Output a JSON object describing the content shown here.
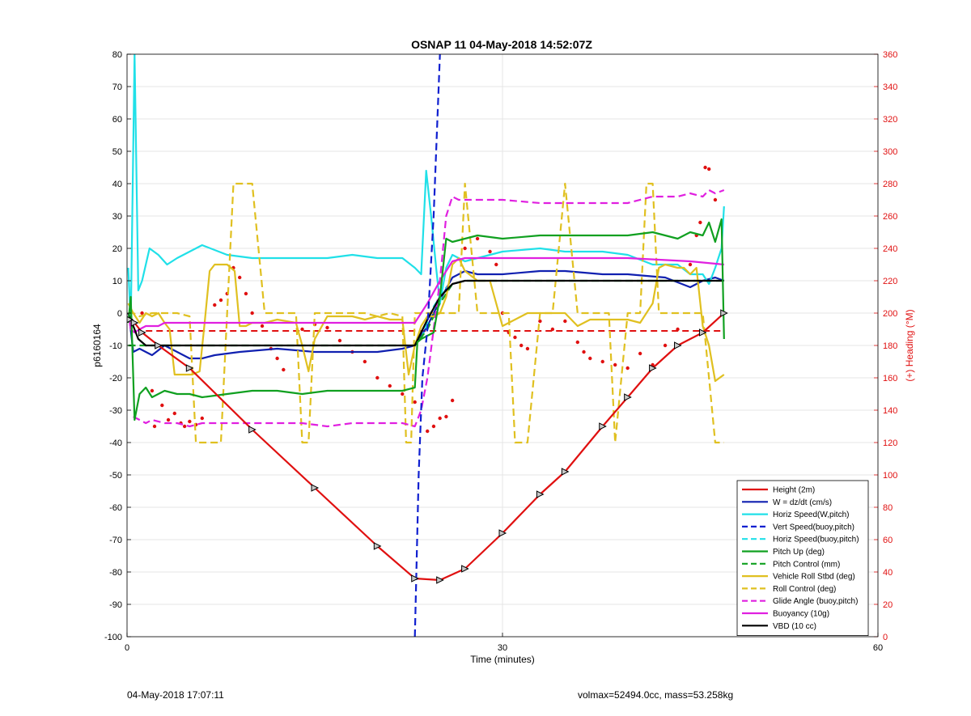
{
  "chart_data": {
    "type": "line",
    "title": "OSNAP 11 04-May-2018 14:52:07Z",
    "xlabel": "Time (minutes)",
    "ylabel_left": "p6160164",
    "ylabel_right": "(+) Heading (°M)",
    "xlim": [
      0,
      60
    ],
    "ylim_left": [
      -100,
      80
    ],
    "ylim_right": [
      0,
      360
    ],
    "x_ticks": [
      "0",
      "30",
      "60"
    ],
    "y_ticks_left": [
      "80",
      "70",
      "60",
      "50",
      "40",
      "30",
      "20",
      "10",
      "0",
      "-10",
      "-20",
      "-30",
      "-40",
      "-50",
      "-60",
      "-70",
      "-80",
      "-90",
      "-100"
    ],
    "y_ticks_right": [
      "360",
      "340",
      "320",
      "300",
      "280",
      "260",
      "240",
      "220",
      "200",
      "180",
      "160",
      "140",
      "120",
      "100",
      "80",
      "60",
      "40",
      "20",
      "0"
    ],
    "grid": true,
    "legend_position": "bottom-right",
    "series": [
      {
        "name": "Height (2m)",
        "color": "#e01010",
        "style": "solid",
        "x": [
          0.2,
          0.6,
          1.2,
          2.5,
          5,
          10,
          15,
          20,
          23,
          25,
          27,
          30,
          33,
          35,
          38,
          40,
          42,
          44,
          46,
          47.7
        ],
        "y": [
          -2,
          -3,
          -6,
          -10,
          -17,
          -36,
          -54,
          -72,
          -82,
          -82.5,
          -79,
          -68,
          -56,
          -49,
          -35,
          -26,
          -17,
          -10,
          -6,
          0
        ]
      },
      {
        "name": "W = dz/dt (cm/s)",
        "color": "#1020b0",
        "style": "solid",
        "x": [
          0.2,
          0.5,
          1,
          2,
          3,
          4,
          5,
          6,
          7,
          9,
          12,
          15,
          18,
          20,
          22,
          23,
          24,
          25,
          26,
          27,
          28,
          30,
          33,
          35,
          38,
          40,
          43,
          45,
          46,
          47,
          47.7
        ],
        "y": [
          -2,
          -12,
          -11,
          -13,
          -10,
          -12,
          -14,
          -14,
          -13,
          -12,
          -11,
          -12,
          -12,
          -12,
          -11,
          -10,
          -4,
          4,
          11,
          13,
          12,
          12,
          13,
          13,
          12,
          12,
          11,
          8,
          10,
          11,
          10
        ]
      },
      {
        "name": "Horiz Speed(W,pitch)",
        "color": "#20e0e8",
        "style": "solid",
        "x": [
          0.1,
          0.3,
          0.6,
          0.9,
          1.2,
          1.8,
          2.5,
          3.2,
          4,
          6,
          8,
          10,
          12,
          14,
          16,
          18,
          20,
          22,
          23,
          23.5,
          23.9,
          24.3,
          24.7,
          25,
          25.5,
          26,
          27,
          28,
          30,
          33,
          35,
          38,
          40,
          42,
          44,
          45,
          46,
          46.5,
          47,
          47.5,
          47.7
        ],
        "y": [
          14,
          -3,
          80,
          7,
          10,
          20,
          18,
          15,
          17,
          21,
          18,
          17,
          17,
          17,
          17,
          18,
          17,
          17,
          14,
          12,
          44,
          30,
          14,
          3,
          14,
          18,
          16,
          17,
          19,
          20,
          19,
          19,
          18,
          15,
          15,
          12,
          12,
          9,
          14,
          20,
          33
        ]
      },
      {
        "name": "Vert Speed(buoy,pitch)",
        "color": "#1020d0",
        "style": "dashed",
        "x": [
          23.0,
          23.3,
          23.6,
          24.0,
          24.5,
          25.0
        ],
        "y": [
          -100,
          -50,
          -20,
          -5,
          30,
          80
        ]
      },
      {
        "name": "Horiz Speed(buoy,pitch)",
        "color": "#20e0e8",
        "style": "dashed",
        "x": [
          23.5,
          24,
          24.5,
          25,
          25.5
        ],
        "y": [
          -8,
          -3,
          2,
          5,
          8
        ]
      },
      {
        "name": "Pitch Up (deg)",
        "color": "#10a020",
        "style": "solid",
        "x": [
          0.1,
          0.3,
          0.6,
          1,
          1.5,
          2,
          3,
          4,
          5,
          6,
          8,
          10,
          12,
          14,
          16,
          18,
          20,
          22,
          23,
          23.2,
          23.5,
          24,
          24.5,
          25,
          25.5,
          26,
          28,
          30,
          33,
          35,
          38,
          40,
          42,
          44,
          45,
          46,
          46.5,
          47,
          47.5,
          47.7
        ],
        "y": [
          -3,
          5,
          -33,
          -25,
          -23,
          -26,
          -24,
          -25,
          -25,
          -26,
          -25,
          -24,
          -24,
          -25,
          -24,
          -24,
          -24,
          -24,
          -23,
          -9,
          -8,
          -7,
          -6,
          5,
          23,
          22,
          24,
          23,
          24,
          24,
          24,
          24,
          25,
          23,
          25,
          24,
          28,
          22,
          29,
          -8
        ]
      },
      {
        "name": "Pitch Control (mm)",
        "color": "#10a020",
        "style": "dashed",
        "x": [
          0.1,
          1,
          3,
          5,
          10,
          15,
          20,
          23,
          24,
          25,
          26,
          27,
          30,
          35,
          40,
          45,
          47.7
        ],
        "y": [
          -10,
          -10,
          -10,
          -10,
          -10,
          -10,
          -10,
          -10,
          -5,
          3,
          9,
          10,
          10,
          10,
          10,
          10,
          10
        ]
      },
      {
        "name": "Vehicle Roll Stbd (deg)",
        "color": "#e0c020",
        "style": "solid",
        "x": [
          0.1,
          0.5,
          1,
          1.5,
          2,
          2.5,
          3,
          3.4,
          3.8,
          4.3,
          5.2,
          5.8,
          6.2,
          6.6,
          7,
          8,
          8.6,
          9,
          9.5,
          10,
          10.5,
          11,
          12,
          13.5,
          14,
          14.5,
          15,
          16,
          17,
          18,
          19,
          20,
          21,
          22,
          22.5,
          23,
          23.5,
          24,
          24.5,
          25,
          25.5,
          26,
          26.5,
          27,
          28,
          29,
          30,
          31,
          31.5,
          32,
          33,
          34,
          35,
          36,
          37,
          38,
          39,
          40,
          41,
          42,
          42.5,
          43,
          44,
          44.5,
          45,
          45.5,
          46,
          46.5,
          47,
          47.7
        ],
        "y": [
          3,
          0,
          -3,
          0,
          -1,
          0,
          -3,
          -5,
          -19,
          -19,
          -19,
          -18,
          -3,
          13,
          15,
          15,
          13,
          -4,
          -4,
          -3,
          -3,
          -3,
          -2,
          -3,
          -10,
          -18,
          -8,
          -1,
          -1,
          -1,
          -2,
          -1,
          -2,
          -2,
          -19,
          -10,
          -4,
          -1,
          -1,
          0,
          5,
          15,
          17,
          13,
          10,
          10,
          -4,
          -2,
          -1,
          0,
          0,
          0,
          0,
          -4,
          -2,
          -2,
          -2,
          -2,
          -3,
          3,
          14,
          15,
          14,
          14,
          12,
          14,
          -4,
          -10,
          -21,
          -19
        ]
      },
      {
        "name": "Roll Control (deg)",
        "color": "#e0c020",
        "style": "dashed",
        "x": [
          0.1,
          0.5,
          1,
          2,
          3,
          4,
          5,
          5.5,
          6,
          7,
          7.5,
          8,
          8.5,
          9.5,
          10,
          11,
          12,
          13,
          13.5,
          14,
          14.5,
          15,
          16,
          17,
          18,
          19,
          20,
          21,
          22,
          22.3,
          22.7,
          23,
          23.5,
          24,
          25,
          26,
          26.5,
          27,
          28,
          29,
          30,
          30.5,
          31,
          31.5,
          32,
          33,
          34,
          35,
          36,
          37,
          38,
          38.5,
          39,
          40,
          41,
          41.5,
          42,
          42.5,
          43,
          44,
          45,
          46,
          47,
          47.7
        ],
        "y": [
          0,
          0,
          -1,
          0,
          0,
          0,
          -1,
          -40,
          -40,
          -40,
          -40,
          0,
          40,
          40,
          40,
          0,
          0,
          0,
          0,
          -40,
          -40,
          0,
          0,
          0,
          0,
          0,
          -1,
          0,
          -1,
          -40,
          -40,
          0,
          0,
          0,
          0,
          0,
          0,
          40,
          0,
          0,
          0,
          0,
          -40,
          -40,
          -40,
          0,
          0,
          40,
          0,
          0,
          0,
          0,
          -40,
          0,
          0,
          40,
          40,
          0,
          0,
          0,
          0,
          0,
          -40,
          -40
        ]
      },
      {
        "name": "Glide Angle (buoy,pitch)",
        "color": "#e020e0",
        "style": "dashed",
        "x": [
          0.5,
          1,
          1.5,
          2,
          3,
          4,
          5,
          6,
          8,
          10,
          12,
          14,
          16,
          18,
          20,
          22,
          23,
          23.5,
          24,
          24.5,
          25,
          25.5,
          26,
          26.5,
          27,
          28,
          30,
          33,
          35,
          38,
          40,
          42,
          44,
          45,
          46,
          46.5,
          47,
          47.7
        ],
        "y": [
          -32,
          -33,
          -34,
          -33,
          -34,
          -34,
          -35,
          -34,
          -34,
          -34,
          -34,
          -34,
          -35,
          -34,
          -34,
          -34,
          -35,
          -30,
          -20,
          -5,
          10,
          30,
          36,
          35,
          35,
          35,
          35,
          34,
          34,
          34,
          34,
          36,
          36,
          37,
          36,
          38,
          37,
          38
        ]
      },
      {
        "name": "Buoyancy (10g)",
        "color": "#e020e0",
        "style": "solid",
        "x": [
          0.1,
          0.3,
          0.6,
          1,
          1.5,
          2,
          2.5,
          3,
          4,
          5,
          10,
          15,
          20,
          23,
          24,
          25,
          26,
          27,
          28,
          30,
          35,
          40,
          45,
          47.7
        ],
        "y": [
          0,
          -5,
          -6,
          -5,
          -4,
          -4,
          -4,
          -3,
          -3,
          -3,
          -3,
          -3,
          -3,
          -3,
          3,
          10,
          16,
          17,
          17,
          17,
          17,
          17,
          16,
          15
        ]
      },
      {
        "name": "VBD (10 cc)",
        "color": "#000000",
        "style": "solid",
        "x": [
          0.1,
          0.3,
          0.5,
          0.9,
          1.5,
          2,
          3,
          5,
          10,
          15,
          20,
          23,
          24,
          25,
          26,
          27,
          28,
          30,
          35,
          40,
          45,
          47.7
        ],
        "y": [
          0,
          -2,
          -4,
          -8,
          -10,
          -10,
          -10,
          -10,
          -10,
          -10,
          -10,
          -10,
          -2,
          5,
          9,
          10,
          10,
          10,
          10,
          10,
          10,
          10
        ]
      }
    ],
    "reference_line": {
      "color": "#e01010",
      "style": "dashed",
      "y": -5.5,
      "xmin": 1.5,
      "xmax": 47.7
    },
    "heading_points": {
      "color": "#e01010",
      "axis": "right",
      "x": [
        1.2,
        2.0,
        2.2,
        2.8,
        3.3,
        3.8,
        4.3,
        4.6,
        5.0,
        5.5,
        6.0,
        7.0,
        7.5,
        8.0,
        8.5,
        9.0,
        9.5,
        10.0,
        10.8,
        11.5,
        12.0,
        12.5,
        14.0,
        15.0,
        16.0,
        17.0,
        18.0,
        19.0,
        20.0,
        21.0,
        22.0,
        23.0,
        24.0,
        24.5,
        25.0,
        25.5,
        26.0,
        27.0,
        28.0,
        29.0,
        29.5,
        30.0,
        30.5,
        31.0,
        31.5,
        32.0,
        33.0,
        34.0,
        35.0,
        36.0,
        36.5,
        37.0,
        38.0,
        39.0,
        40.0,
        41.0,
        42.0,
        43.0,
        44.0,
        45.0,
        45.5,
        45.8,
        46.2,
        46.5,
        47.0
      ],
      "y": [
        200,
        152,
        130,
        143,
        134,
        138,
        132,
        130,
        133,
        131,
        135,
        205,
        208,
        212,
        228,
        222,
        212,
        200,
        192,
        178,
        172,
        165,
        190,
        193,
        191,
        183,
        176,
        170,
        160,
        155,
        150,
        145,
        127,
        130,
        135,
        136,
        146,
        240,
        246,
        238,
        230,
        200,
        188,
        185,
        180,
        178,
        195,
        190,
        195,
        182,
        176,
        172,
        170,
        168,
        166,
        175,
        168,
        180,
        190,
        230,
        248,
        256,
        290,
        289,
        270
      ],
      "note": "scatter only"
    }
  },
  "footer": {
    "left": "04-May-2018 17:07:11",
    "right": "volmax=52494.0cc, mass=53.258kg"
  }
}
